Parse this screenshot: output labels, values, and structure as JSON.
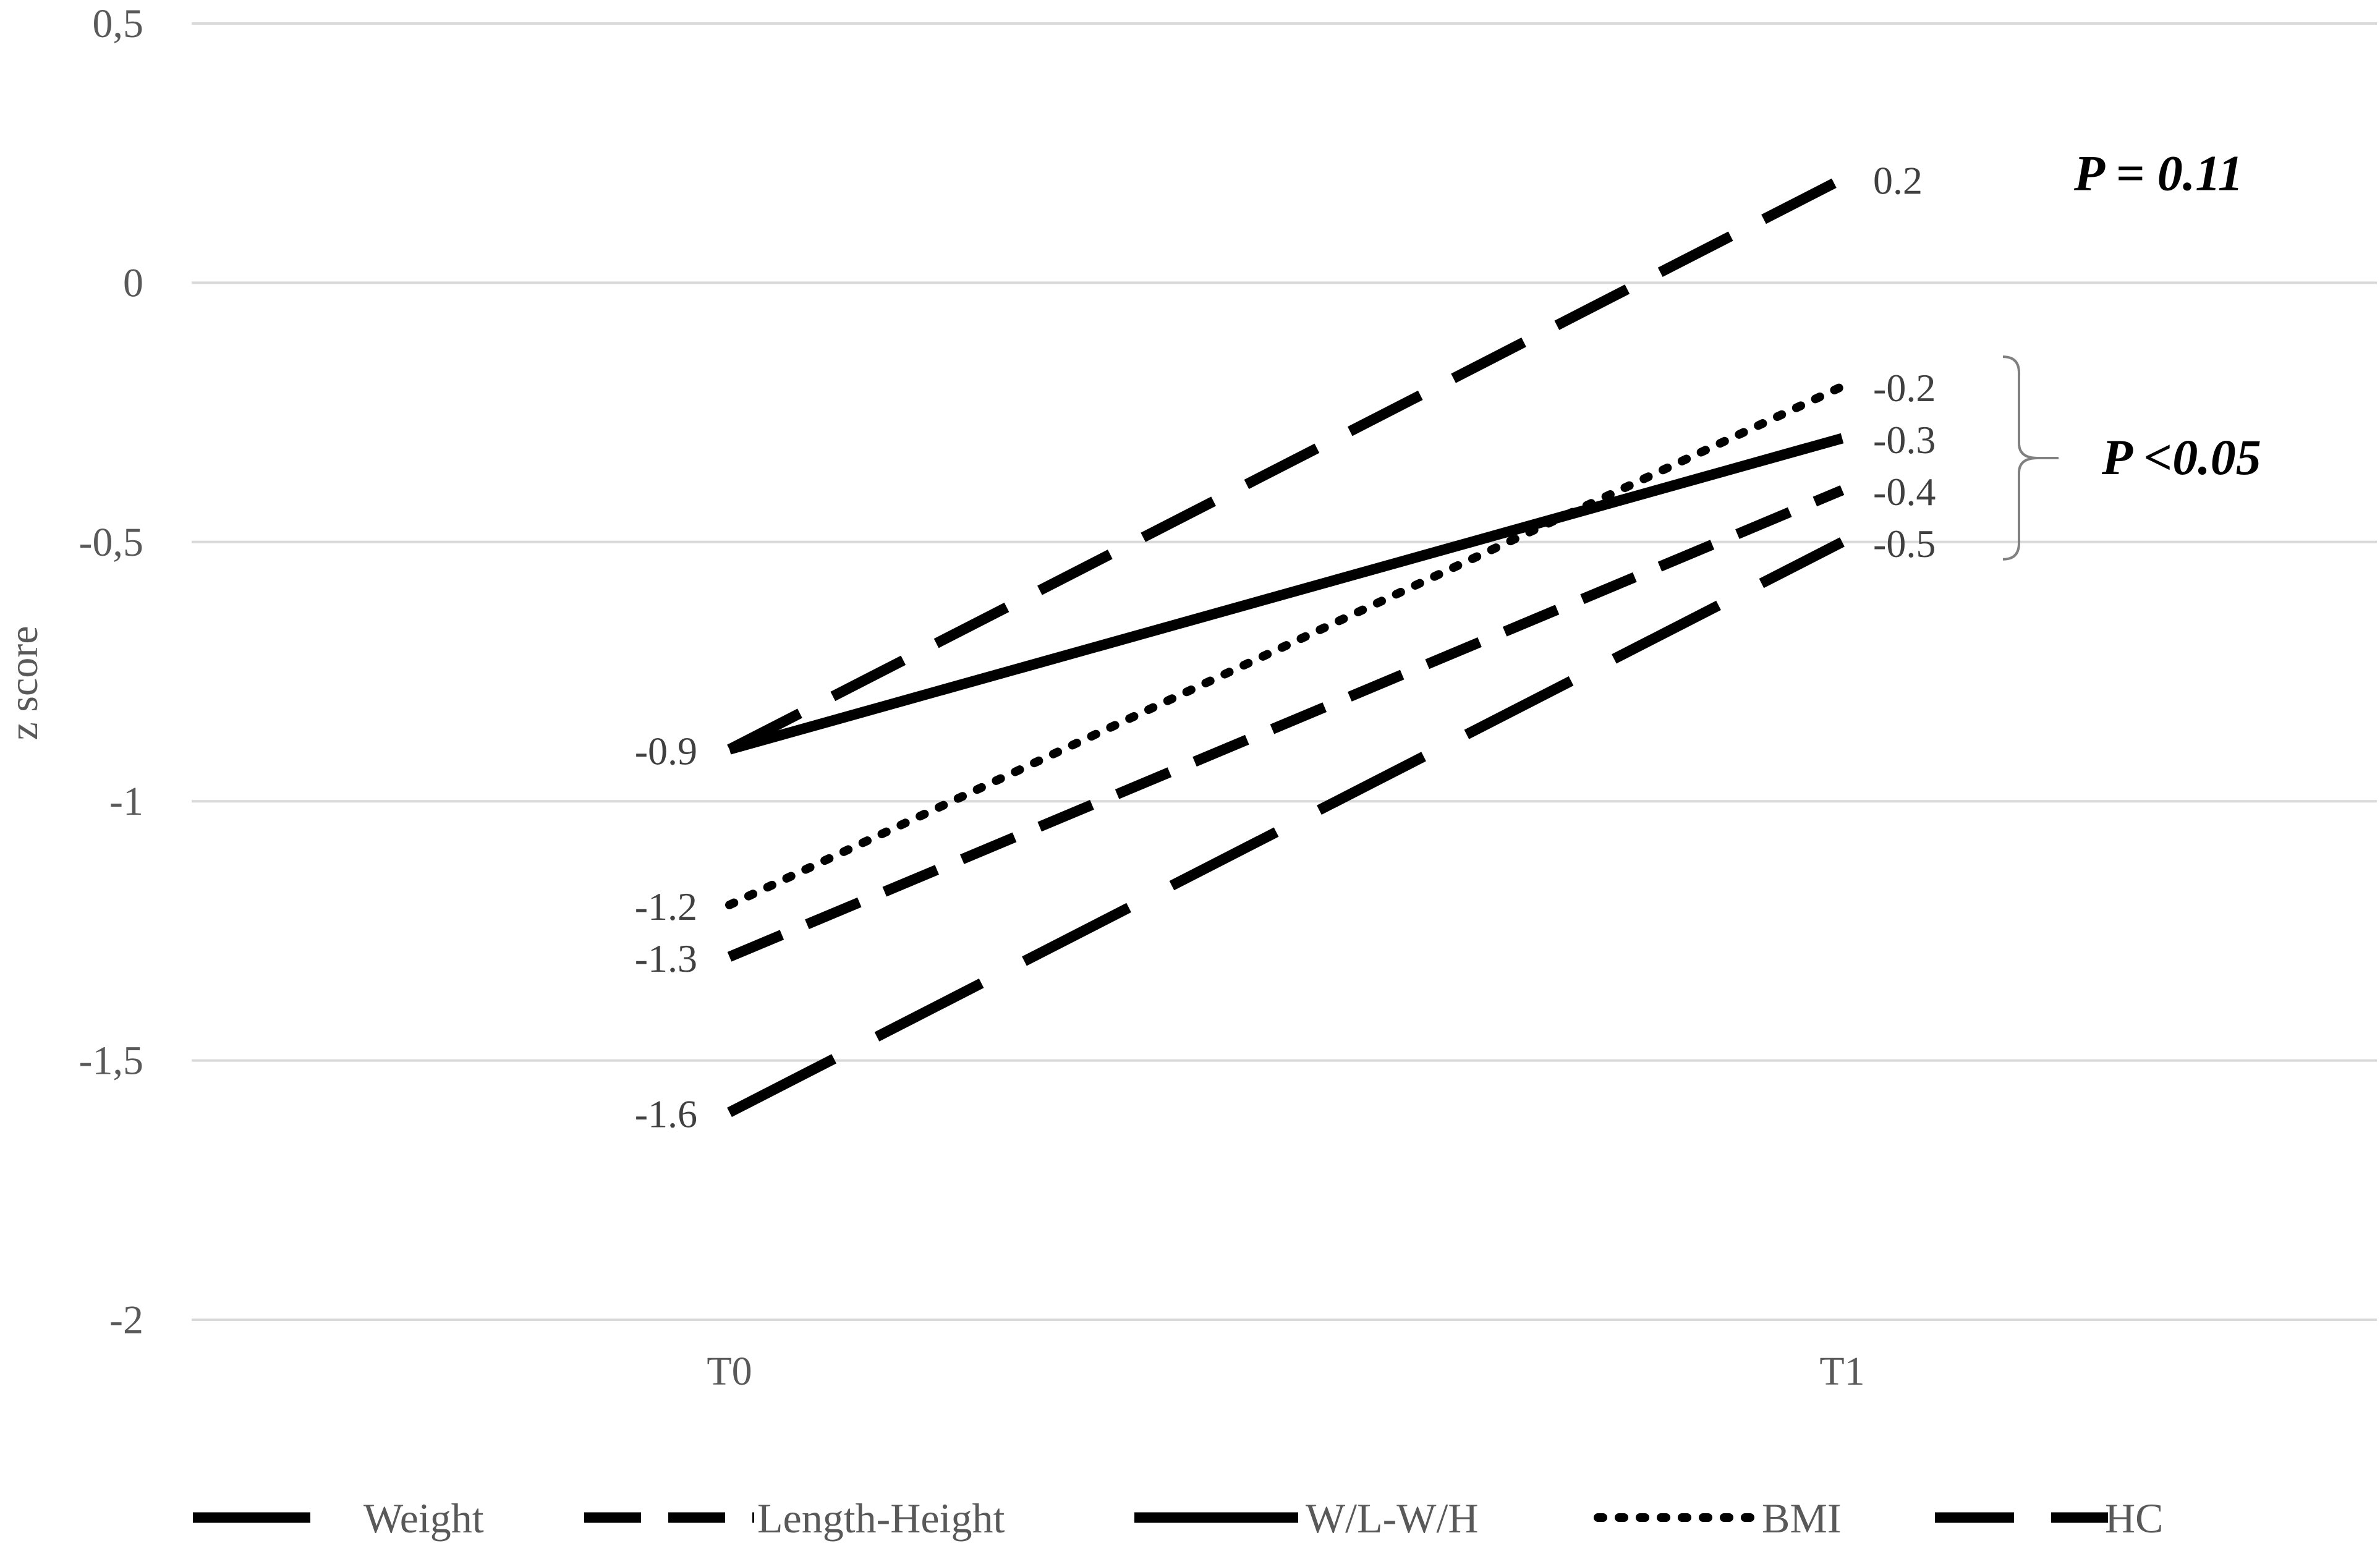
{
  "chart_data": {
    "type": "line",
    "title": "",
    "xlabel": "",
    "ylabel": "z score",
    "categories": [
      "T0",
      "T1"
    ],
    "ylim": [
      -2,
      0.5
    ],
    "yticks": [
      0.5,
      0,
      -0.5,
      -1,
      -1.5,
      -2
    ],
    "ytick_labels": [
      "0,5",
      "0",
      "-0,5",
      "-1",
      "-1,5",
      "-2"
    ],
    "grid": true,
    "legend_position": "bottom",
    "series": [
      {
        "name": "Weight",
        "values": [
          -1.6,
          -0.5
        ],
        "dash": "long-dash",
        "color": "#000000"
      },
      {
        "name": "Length-Height",
        "values": [
          -1.3,
          -0.4
        ],
        "dash": "dash",
        "color": "#000000"
      },
      {
        "name": "W/L-W/H",
        "values": [
          -0.9,
          -0.3
        ],
        "dash": "solid",
        "color": "#000000"
      },
      {
        "name": "BMI",
        "values": [
          -1.2,
          -0.2
        ],
        "dash": "dot",
        "color": "#000000"
      },
      {
        "name": "HC",
        "values": [
          -0.9,
          0.2
        ],
        "dash": "medium-dash",
        "color": "#000000"
      }
    ],
    "data_labels_t0": [
      "-0.9",
      "-1.2",
      "-1.3",
      "-1.6"
    ],
    "data_labels_t1": [
      "0.2",
      "-0.2",
      "-0.3",
      "-0.4",
      "-0.5"
    ],
    "annotations": [
      "P = 0.11",
      "P <0.05"
    ]
  }
}
